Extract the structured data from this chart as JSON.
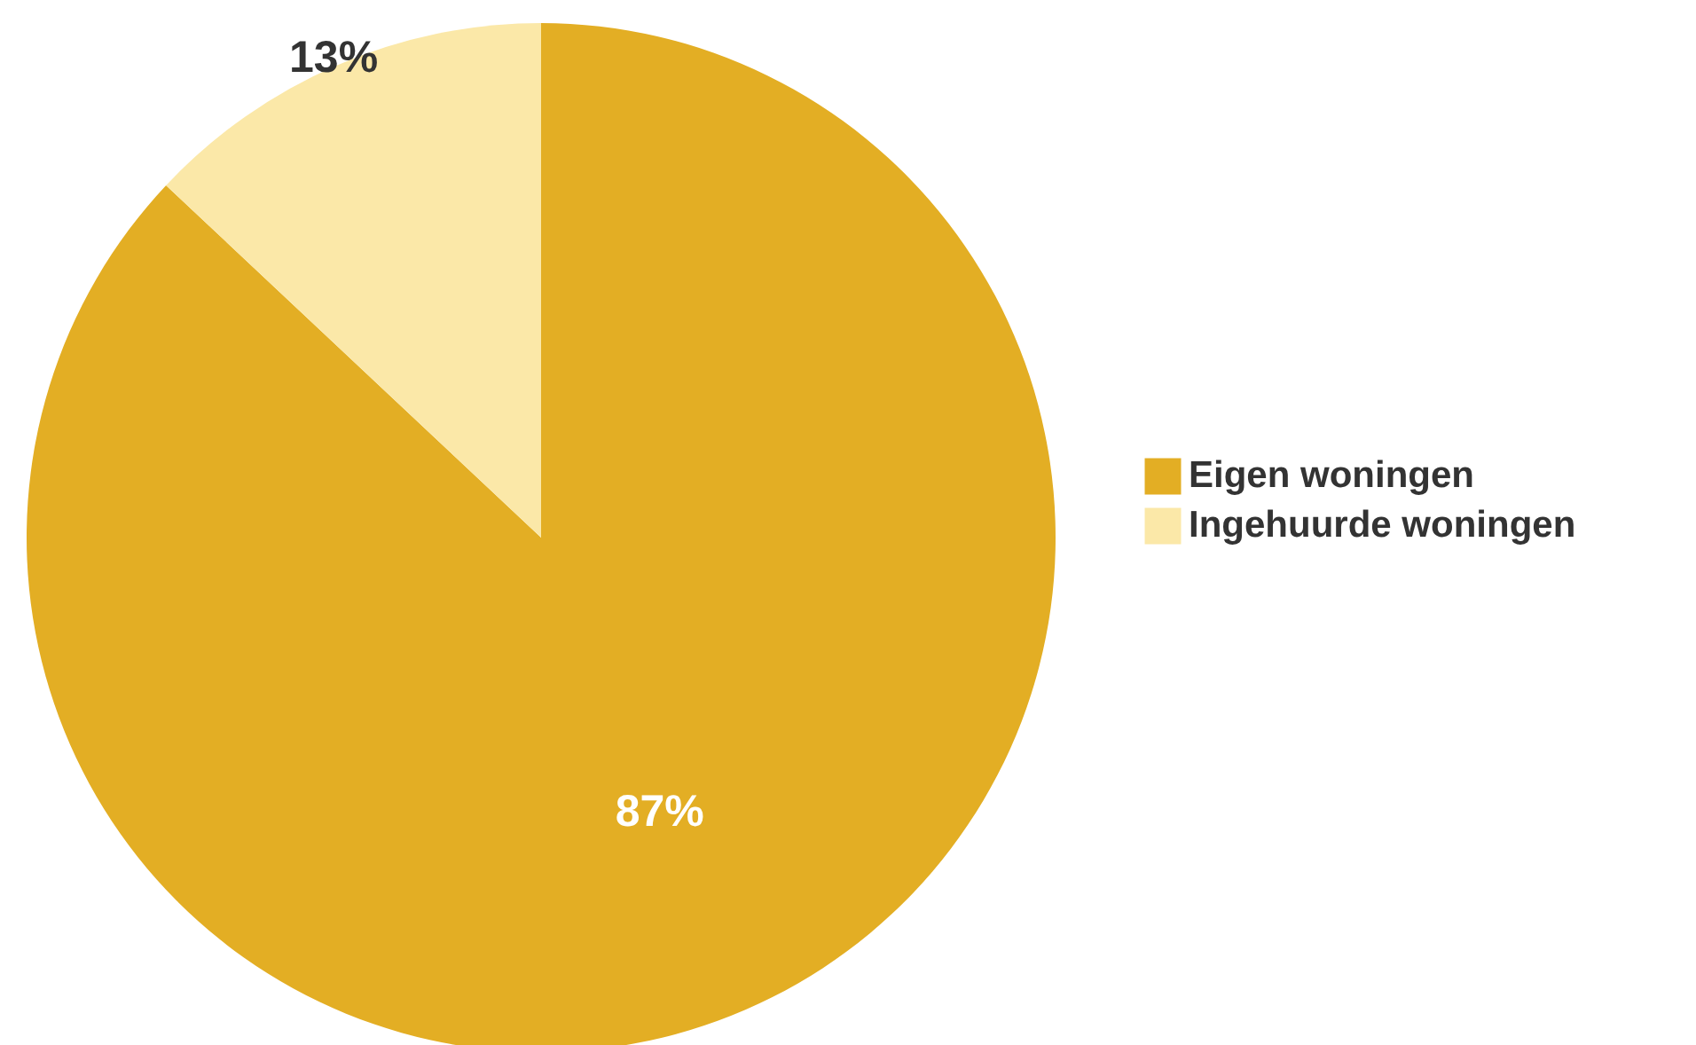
{
  "chart_data": {
    "type": "pie",
    "categories": [
      "Eigen woningen",
      "Ingehuurde woningen"
    ],
    "values": [
      87,
      13
    ],
    "colors": [
      "#e3ae24",
      "#fbe8a8"
    ],
    "value_labels": [
      "87%",
      "13%"
    ],
    "legend": "right"
  }
}
